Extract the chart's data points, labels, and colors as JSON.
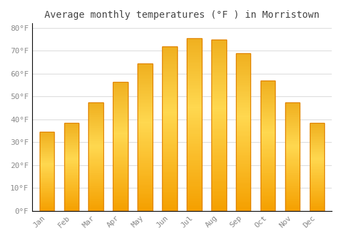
{
  "title": "Average monthly temperatures (°F ) in Morristown",
  "months": [
    "Jan",
    "Feb",
    "Mar",
    "Apr",
    "May",
    "Jun",
    "Jul",
    "Aug",
    "Sep",
    "Oct",
    "Nov",
    "Dec"
  ],
  "values": [
    34.5,
    38.5,
    47.5,
    56.5,
    64.5,
    72.0,
    75.5,
    75.0,
    69.0,
    57.0,
    47.5,
    38.5
  ],
  "bar_color_bottom": "#F5A000",
  "bar_color_mid": "#FFD060",
  "bar_color_top": "#FFB820",
  "background_color": "#FFFFFF",
  "grid_color": "#DDDDDD",
  "title_color": "#444444",
  "tick_label_color": "#888888",
  "ylim": [
    0,
    82
  ],
  "yticks": [
    0,
    10,
    20,
    30,
    40,
    50,
    60,
    70,
    80
  ],
  "ytick_labels": [
    "0°F",
    "10°F",
    "20°F",
    "30°F",
    "40°F",
    "50°F",
    "60°F",
    "70°F",
    "80°F"
  ],
  "title_fontsize": 10,
  "tick_fontsize": 8,
  "font_family": "monospace",
  "bar_width": 0.6
}
